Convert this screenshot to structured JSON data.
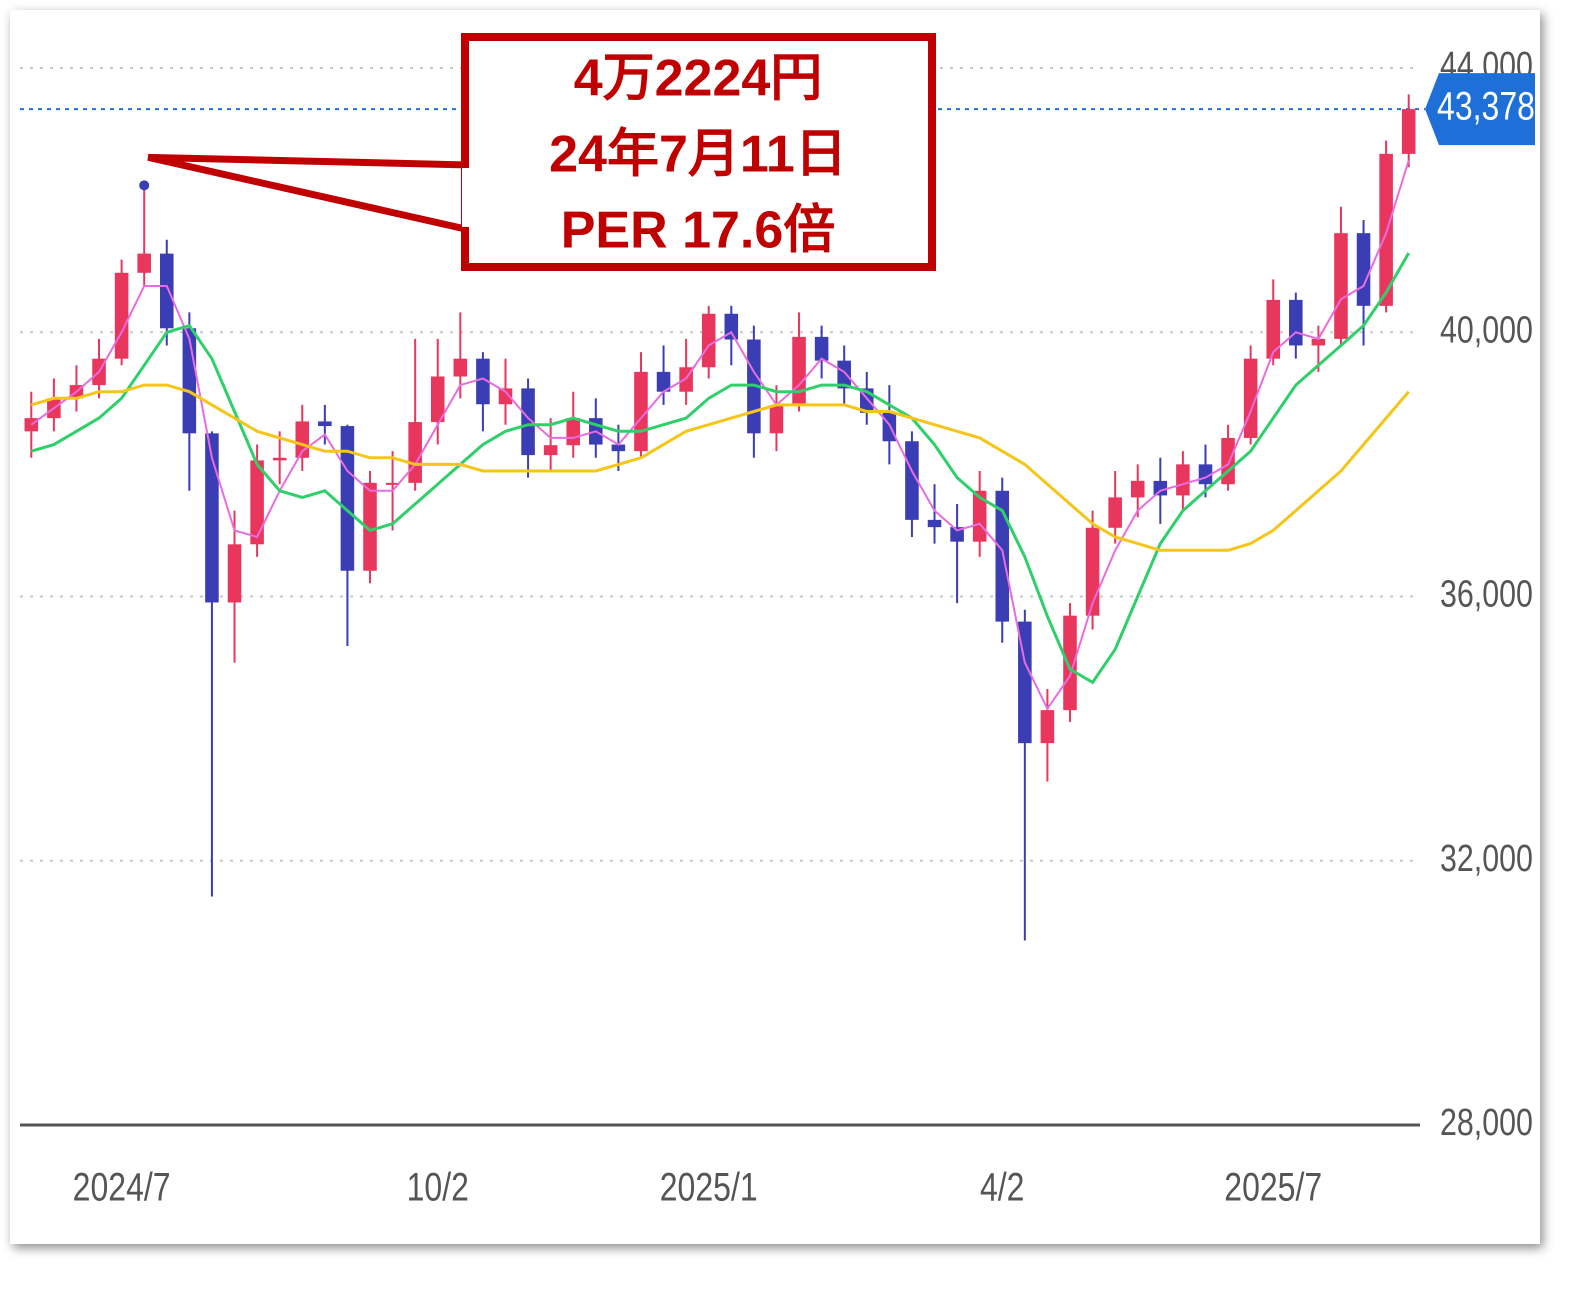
{
  "chart_data": {
    "type": "candlestick",
    "categories": [
      null,
      null,
      null,
      null,
      "2024/7",
      null,
      null,
      null,
      null,
      null,
      null,
      null,
      null,
      null,
      null,
      null,
      null,
      null,
      "10/2",
      null,
      null,
      null,
      null,
      null,
      null,
      null,
      null,
      null,
      null,
      null,
      "2025/1",
      null,
      null,
      null,
      null,
      null,
      null,
      null,
      null,
      null,
      null,
      null,
      null,
      "4/2",
      null,
      null,
      null,
      null,
      null,
      null,
      null,
      null,
      null,
      null,
      null,
      "2025/7",
      null,
      null,
      null,
      null,
      null,
      null
    ],
    "open": [
      38500,
      38700,
      39000,
      39200,
      39600,
      40900,
      41190,
      40060,
      38470,
      35910,
      36790,
      38060,
      38100,
      38650,
      38580,
      36390,
      37720,
      37720,
      38640,
      39330,
      39600,
      38910,
      39150,
      38140,
      38290,
      38700,
      38300,
      38200,
      39400,
      39100,
      39470,
      40280,
      39890,
      38470,
      38900,
      39930,
      39570,
      39150,
      38780,
      38350,
      37160,
      37050,
      36830,
      37600,
      35620,
      33780,
      34280,
      35710,
      37040,
      37500,
      37750,
      37530,
      38000,
      37700,
      38400,
      39600,
      40490,
      39800,
      39900,
      41500,
      40400,
      42700
    ],
    "high": [
      39100,
      39300,
      39500,
      39900,
      41100,
      42224,
      41400,
      40300,
      38500,
      37300,
      38300,
      38500,
      38900,
      38900,
      38600,
      37900,
      38200,
      39900,
      39900,
      40300,
      39700,
      39600,
      39300,
      38700,
      39100,
      39000,
      38600,
      39700,
      39800,
      39900,
      40400,
      40400,
      40100,
      39200,
      40300,
      40100,
      39800,
      39400,
      39200,
      38500,
      37700,
      37400,
      37900,
      37800,
      35800,
      34600,
      35900,
      37300,
      37900,
      38000,
      38100,
      38200,
      38300,
      38600,
      39800,
      40800,
      40600,
      40100,
      41900,
      41700,
      42900,
      43600
    ],
    "low": [
      38100,
      38500,
      38800,
      39000,
      39500,
      40700,
      39800,
      37600,
      31458,
      35000,
      36600,
      37700,
      37900,
      38300,
      35250,
      36200,
      37000,
      37600,
      38300,
      39000,
      38500,
      38600,
      37800,
      37900,
      38100,
      38100,
      37900,
      38100,
      38900,
      38900,
      39300,
      39500,
      38100,
      38200,
      38800,
      39300,
      38900,
      38600,
      38000,
      36900,
      36800,
      35900,
      36600,
      35300,
      30792,
      33200,
      34100,
      35500,
      36800,
      37200,
      37100,
      37300,
      37500,
      37600,
      38300,
      39500,
      39600,
      39400,
      39800,
      39800,
      40300,
      42500
    ],
    "close": [
      38700,
      39000,
      39200,
      39600,
      40900,
      41190,
      40060,
      38470,
      35910,
      36790,
      38060,
      38100,
      38650,
      38580,
      36390,
      37720,
      37720,
      38640,
      39330,
      39600,
      38910,
      39150,
      38140,
      38290,
      38700,
      38300,
      38200,
      39400,
      39100,
      39470,
      40280,
      39890,
      38470,
      38900,
      39930,
      39570,
      39150,
      38780,
      38350,
      37160,
      37050,
      36830,
      37600,
      35620,
      33780,
      34280,
      35710,
      37040,
      37500,
      37750,
      37530,
      38000,
      37700,
      38400,
      39600,
      40490,
      39800,
      39900,
      41500,
      40400,
      42700,
      43378
    ],
    "up_color": "#e8365d",
    "down_color": "#3b3db4",
    "moving_averages": [
      {
        "color": "#e86ce0",
        "values": [
          38600,
          38850,
          39100,
          39400,
          40000,
          40700,
          40700,
          39900,
          38100,
          37000,
          36900,
          37600,
          38200,
          38450,
          37900,
          37600,
          37600,
          38000,
          38600,
          39200,
          39300,
          39100,
          38700,
          38400,
          38400,
          38500,
          38300,
          38700,
          39100,
          39300,
          39800,
          40000,
          39400,
          38900,
          39200,
          39600,
          39400,
          39000,
          38600,
          37900,
          37300,
          37000,
          37100,
          36700,
          35000,
          34300,
          34800,
          35900,
          36700,
          37300,
          37600,
          37700,
          37800,
          38000,
          38800,
          39700,
          40000,
          39900,
          40500,
          40700,
          41500,
          42600
        ]
      },
      {
        "color": "#2fcf6a",
        "values": [
          38200,
          38300,
          38500,
          38700,
          39000,
          39500,
          40000,
          40100,
          39600,
          38800,
          38000,
          37600,
          37500,
          37600,
          37300,
          37000,
          37100,
          37400,
          37700,
          38000,
          38300,
          38500,
          38600,
          38600,
          38700,
          38600,
          38500,
          38500,
          38600,
          38700,
          39000,
          39200,
          39200,
          39100,
          39100,
          39200,
          39200,
          39100,
          38900,
          38700,
          38300,
          37800,
          37500,
          37300,
          36600,
          35700,
          34900,
          34700,
          35200,
          36000,
          36800,
          37300,
          37600,
          37900,
          38200,
          38700,
          39200,
          39500,
          39800,
          40100,
          40600,
          41200
        ]
      },
      {
        "color": "#f5c518",
        "values": [
          38900,
          39000,
          39000,
          39100,
          39100,
          39200,
          39200,
          39100,
          38900,
          38700,
          38500,
          38400,
          38300,
          38200,
          38200,
          38100,
          38100,
          38000,
          38000,
          38000,
          37900,
          37900,
          37900,
          37900,
          37900,
          37900,
          38000,
          38100,
          38300,
          38500,
          38600,
          38700,
          38800,
          38900,
          38900,
          38900,
          38900,
          38800,
          38800,
          38700,
          38600,
          38500,
          38400,
          38200,
          38000,
          37700,
          37400,
          37100,
          36900,
          36800,
          36700,
          36700,
          36700,
          36700,
          36800,
          37000,
          37300,
          37600,
          37900,
          38300,
          38700,
          39100
        ]
      }
    ],
    "ylim": [
      28000,
      44000
    ],
    "yticks": [
      {
        "value": 28000,
        "label": "28,000"
      },
      {
        "value": 32000,
        "label": "32,000"
      },
      {
        "value": 36000,
        "label": "36,000"
      },
      {
        "value": 40000,
        "label": "40,000"
      },
      {
        "value": 44000,
        "label": "44,000"
      }
    ],
    "grid": true,
    "last_price": {
      "value": 43378,
      "label": "43,378",
      "color": "#1f6fd8"
    },
    "annotation": {
      "value": 42224,
      "lines": [
        "4万2224円",
        "24年7月11日",
        "PER 17.6倍"
      ],
      "color": "#c00000"
    }
  }
}
